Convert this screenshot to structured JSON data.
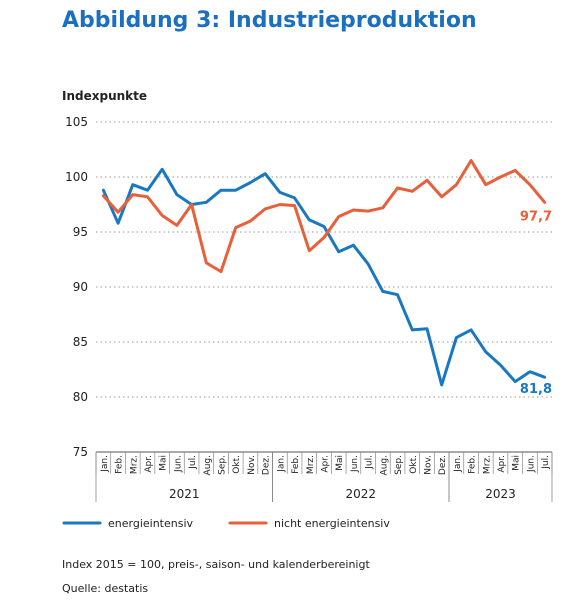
{
  "page": {
    "title": "Abbildung 3: Industrieproduktion",
    "footnote": "Index 2015 = 100, preis-, saison- und kalenderbereinigt",
    "source": "Quelle: destatis"
  },
  "chart_data": {
    "type": "line",
    "ylabel": "Indexpunkte",
    "ylim": [
      75,
      105
    ],
    "yticks": [
      105,
      100,
      95,
      90,
      85,
      80,
      75
    ],
    "grid": "horizontal dotted",
    "x": [
      "Jan.",
      "Feb.",
      "Mrz.",
      "Apr.",
      "Mai",
      "Jun.",
      "Jul.",
      "Aug.",
      "Sep.",
      "Okt.",
      "Nov.",
      "Dez.",
      "Jan.",
      "Feb.",
      "Mrz.",
      "Apr.",
      "Mai",
      "Jun.",
      "Jul.",
      "Aug.",
      "Sep.",
      "Okt.",
      "Nov.",
      "Dez.",
      "Jan.",
      "Feb.",
      "Mrz.",
      "Apr.",
      "Mai",
      "Jun.",
      "Jul."
    ],
    "years": [
      {
        "label": "2021",
        "start": 0,
        "end": 11
      },
      {
        "label": "2022",
        "start": 12,
        "end": 23
      },
      {
        "label": "2023",
        "start": 24,
        "end": 30
      }
    ],
    "legend_position": "bottom",
    "series": [
      {
        "name": "energieintensiv",
        "color": "#1a78c2",
        "end_label": "81,8",
        "values": [
          98.8,
          95.8,
          99.3,
          98.8,
          100.7,
          98.4,
          97.5,
          97.7,
          98.8,
          98.8,
          99.5,
          100.3,
          98.6,
          98.1,
          96.1,
          95.5,
          93.2,
          93.8,
          92.1,
          89.6,
          89.3,
          86.1,
          86.2,
          81.1,
          85.4,
          86.1,
          84.1,
          82.9,
          81.4,
          82.3,
          81.8
        ]
      },
      {
        "name": "nicht energieintensiv",
        "color": "#e8603a",
        "end_label": "97,7",
        "values": [
          98.3,
          96.8,
          98.4,
          98.2,
          96.5,
          95.6,
          97.5,
          92.2,
          91.4,
          95.4,
          96.0,
          97.1,
          97.5,
          97.4,
          93.3,
          94.5,
          96.4,
          97.0,
          96.9,
          97.2,
          99.0,
          98.7,
          99.7,
          98.2,
          99.3,
          101.5,
          99.3,
          100.0,
          100.6,
          99.3,
          97.7
        ]
      }
    ]
  }
}
